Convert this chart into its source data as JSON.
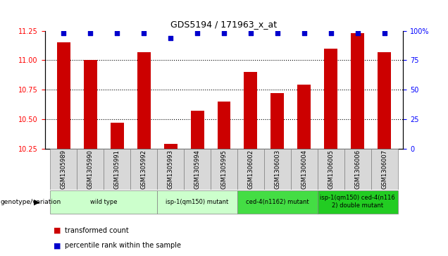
{
  "title": "GDS5194 / 171963_x_at",
  "samples": [
    "GSM1305989",
    "GSM1305990",
    "GSM1305991",
    "GSM1305992",
    "GSM1305993",
    "GSM1305994",
    "GSM1305995",
    "GSM1306002",
    "GSM1306003",
    "GSM1306004",
    "GSM1306005",
    "GSM1306006",
    "GSM1306007"
  ],
  "transformed_count": [
    11.15,
    11.0,
    10.47,
    11.07,
    10.29,
    10.57,
    10.65,
    10.9,
    10.72,
    10.79,
    11.1,
    11.23,
    11.07
  ],
  "percentile_rank": [
    98,
    98,
    98,
    98,
    94,
    98,
    98,
    98,
    98,
    98,
    98,
    98,
    98
  ],
  "ylim_left": [
    10.25,
    11.25
  ],
  "ylim_right": [
    0,
    100
  ],
  "yticks_left": [
    10.25,
    10.5,
    10.75,
    11.0,
    11.25
  ],
  "yticks_right": [
    0,
    25,
    50,
    75,
    100
  ],
  "bar_color": "#cc0000",
  "dot_color": "#0000cc",
  "groups": [
    {
      "label": "wild type",
      "start": 0,
      "end": 3,
      "color": "#ccffcc"
    },
    {
      "label": "isp-1(qm150) mutant",
      "start": 4,
      "end": 6,
      "color": "#ccffcc"
    },
    {
      "label": "ced-4(n1162) mutant",
      "start": 7,
      "end": 9,
      "color": "#44dd44"
    },
    {
      "label": "isp-1(qm150) ced-4(n116\n2) double mutant",
      "start": 10,
      "end": 12,
      "color": "#22cc22"
    }
  ],
  "legend_red": "transformed count",
  "legend_blue": "percentile rank within the sample",
  "genotype_label": "genotype/variation"
}
